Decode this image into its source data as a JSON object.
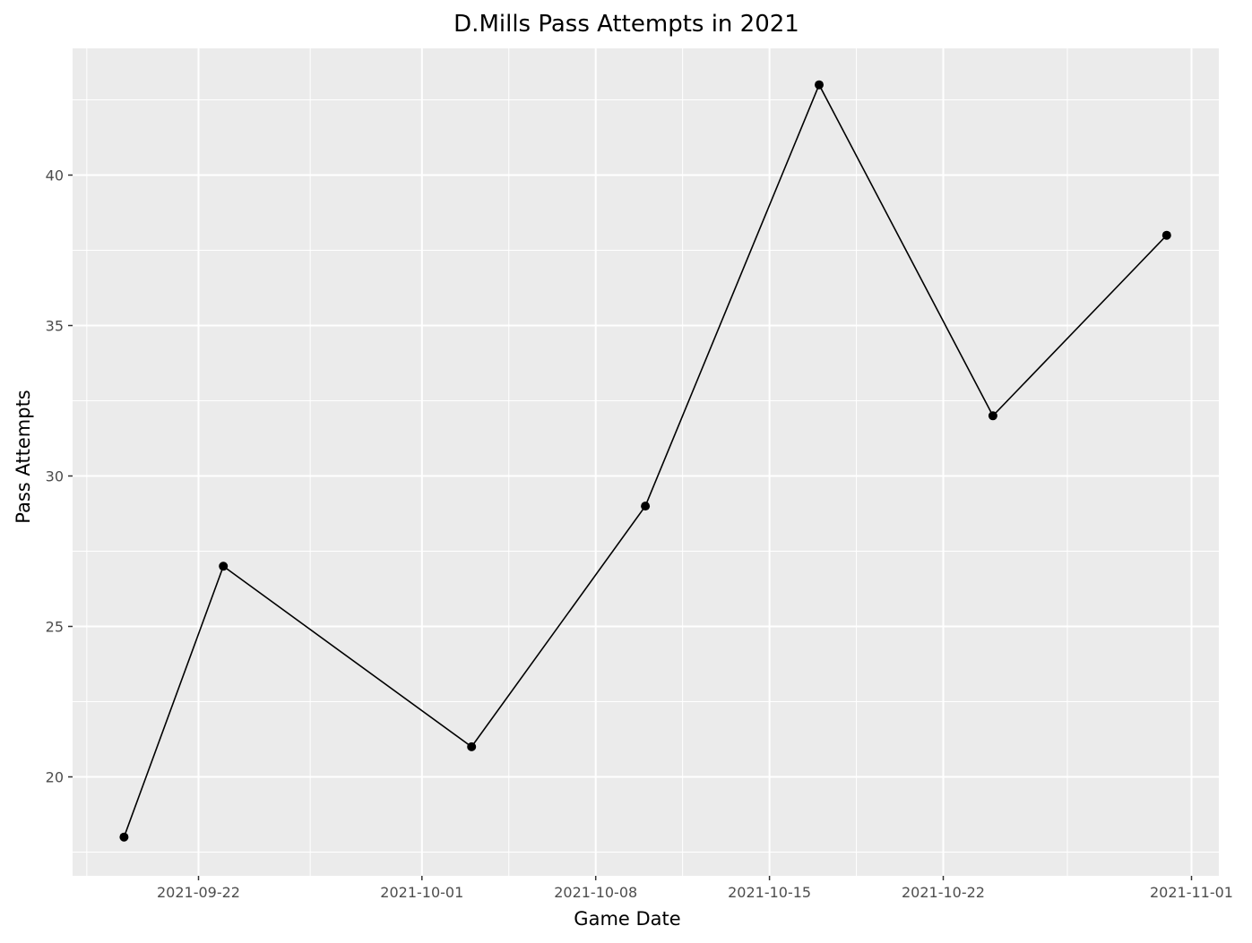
{
  "chart_data": {
    "type": "line",
    "title": "D.Mills Pass Attempts in 2021",
    "xlabel": "Game Date",
    "ylabel": "Pass Attempts",
    "x_type": "date",
    "xlim": [
      "2021-09-15",
      "2021-11-01"
    ],
    "ylim": [
      16.8,
      44.2
    ],
    "x_ticks": [
      "2021-09-22",
      "2021-10-01",
      "2021-10-08",
      "2021-10-15",
      "2021-10-22",
      "2021-11-01"
    ],
    "y_ticks": [
      20,
      25,
      30,
      35,
      40
    ],
    "grid": true,
    "legend": "none",
    "colors": {
      "panel": "#ebebeb",
      "grid": "#ffffff",
      "line": "#000000",
      "point": "#000000",
      "background": "#ffffff"
    },
    "series": [
      {
        "x": [
          "2021-09-19",
          "2021-09-23",
          "2021-10-03",
          "2021-10-10",
          "2021-10-17",
          "2021-10-24",
          "2021-10-31"
        ],
        "y": [
          18,
          27,
          21,
          29,
          43,
          32,
          38
        ]
      }
    ]
  }
}
